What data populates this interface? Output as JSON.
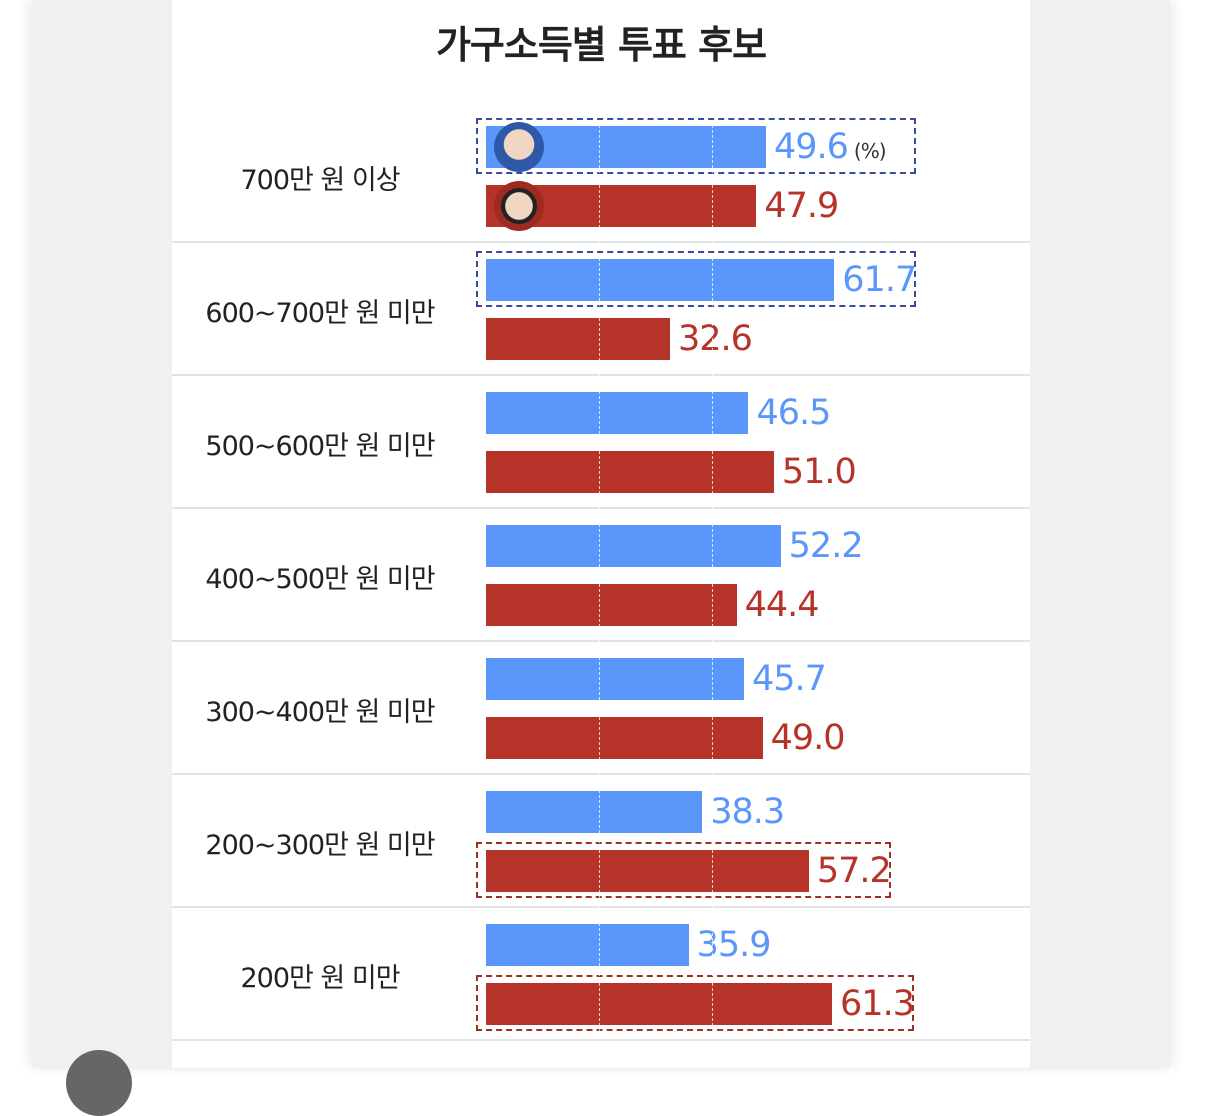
{
  "chart_data": {
    "type": "bar",
    "orientation": "horizontal",
    "title": "가구소득별 투표 후보",
    "unit": "(%)",
    "categories": [
      "700만 원 이상",
      "600~700만 원 미만",
      "500~600만 원 미만",
      "400~500만 원 미만",
      "300~400만 원 미만",
      "200~300만 원 미만",
      "200만 원 미만"
    ],
    "series": [
      {
        "color": "#5b97fb",
        "values": [
          49.6,
          61.7,
          46.5,
          52.2,
          45.7,
          38.3,
          35.9
        ],
        "highlight": [
          true,
          true,
          false,
          false,
          false,
          false,
          false
        ],
        "icon": "candidate-photo-blue"
      },
      {
        "color": "#b53328",
        "values": [
          47.9,
          32.6,
          51.0,
          44.4,
          49.0,
          57.2,
          61.3
        ],
        "highlight": [
          false,
          false,
          false,
          false,
          false,
          true,
          true
        ],
        "icon": "candidate-photo-red"
      }
    ],
    "value_labels": [
      [
        "49.6",
        "61.7",
        "46.5",
        "52.2",
        "45.7",
        "38.3",
        "35.9"
      ],
      [
        "47.9",
        "32.6",
        "51.0",
        "44.4",
        "49.0",
        "57.2",
        "61.3"
      ]
    ],
    "gridlines": [
      20,
      40
    ],
    "grid": true
  }
}
